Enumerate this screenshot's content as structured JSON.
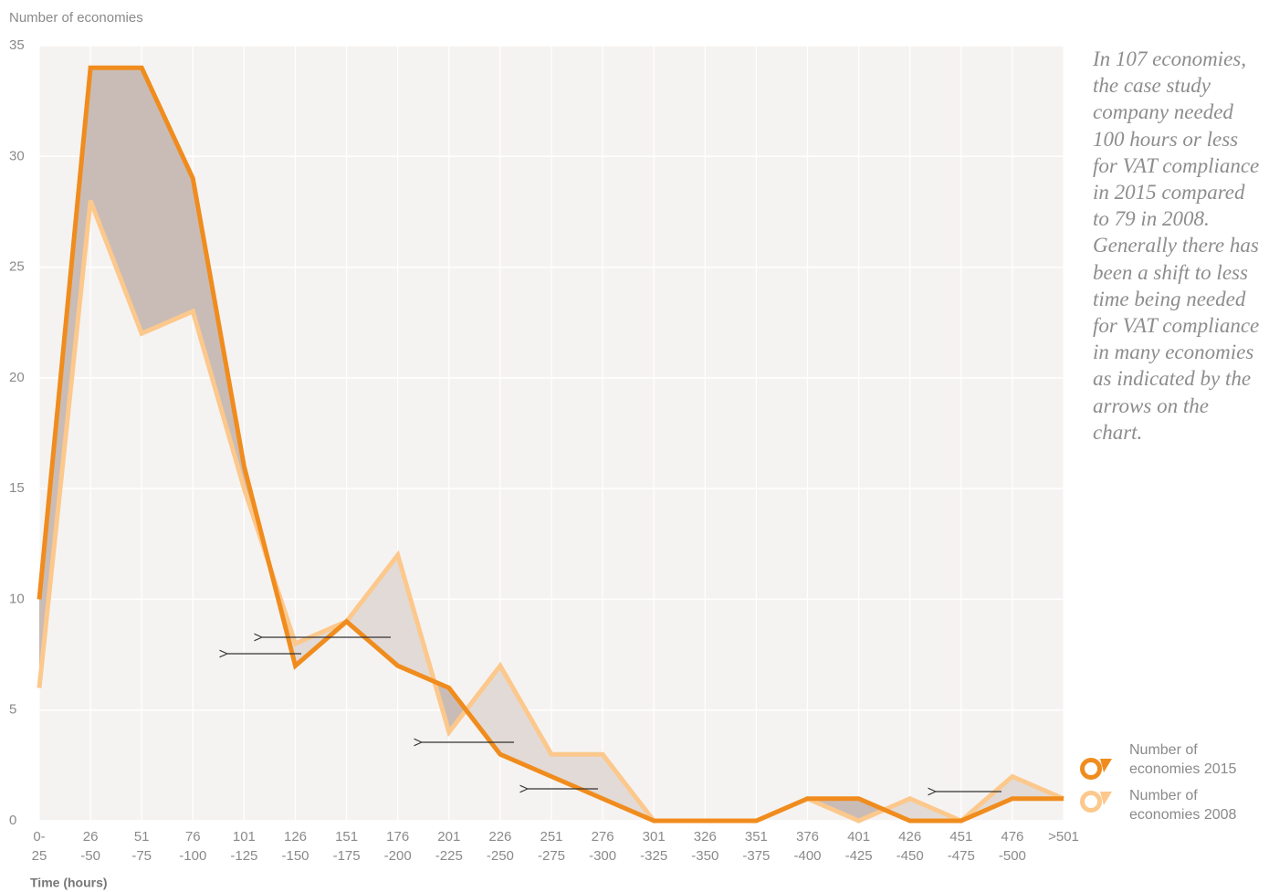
{
  "chart_data": {
    "type": "line",
    "y_label": "Number of economies",
    "x_label": "Time (hours)",
    "categories": [
      [
        "0-",
        "25"
      ],
      [
        "26",
        "-50"
      ],
      [
        "51",
        "-75"
      ],
      [
        "76",
        "-100"
      ],
      [
        "101",
        "-125"
      ],
      [
        "126",
        "-150"
      ],
      [
        "151",
        "-175"
      ],
      [
        "176",
        "-200"
      ],
      [
        "201",
        "-225"
      ],
      [
        "226",
        "-250"
      ],
      [
        "251",
        "-275"
      ],
      [
        "276",
        "-300"
      ],
      [
        "301",
        "-325"
      ],
      [
        "326",
        "-350"
      ],
      [
        "351",
        "-375"
      ],
      [
        "376",
        "-400"
      ],
      [
        "401",
        "-425"
      ],
      [
        "426",
        "-450"
      ],
      [
        "451",
        "-475"
      ],
      [
        "476",
        "-500"
      ],
      [
        ">501"
      ]
    ],
    "series": [
      {
        "name": "Number of economies 2015",
        "color": "#f08c1e",
        "values": [
          10,
          34,
          34,
          29,
          16,
          7,
          9,
          7,
          6,
          3,
          2,
          1,
          0,
          0,
          0,
          1,
          1,
          0,
          0,
          1,
          1
        ]
      },
      {
        "name": "Number of economies 2008",
        "color": "#fcc88c",
        "values": [
          6,
          28,
          22,
          23,
          15,
          8,
          9,
          12,
          4,
          7,
          3,
          3,
          0,
          0,
          0,
          1,
          0,
          1,
          0,
          2,
          1
        ]
      }
    ],
    "ylim": [
      0,
      35
    ],
    "yticks": [
      0,
      5,
      10,
      15,
      20,
      25,
      30,
      35
    ],
    "grid": true,
    "annotation": "In 107 economies, the case study company needed 100 hours or less for VAT compliance in 2015 compared to 79 in 2008. Generally there has been a shift to less time being needed for VAT compliance in many economies as indicated by the arrows on the chart."
  }
}
